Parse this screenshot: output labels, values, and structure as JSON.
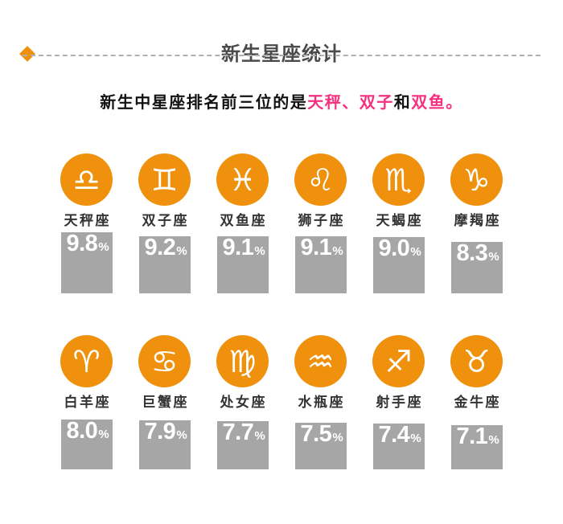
{
  "colors": {
    "accent": "#ef910d",
    "pink": "#f5317f",
    "bar_gray": "#a6a6a6",
    "title_gray": "#4a4a4a"
  },
  "header": {
    "title": "新生星座统计",
    "subtitle": {
      "seg1": "新生中星座排名前三位的是",
      "seg2": "天秤、双子",
      "seg3": "和",
      "seg4": "双鱼。"
    }
  },
  "ui": {
    "rows": [
      {
        "items": [
          {
            "label": "天秤座",
            "icon": "♎",
            "pct": "9.8",
            "unit": "%",
            "value": 9.8
          },
          {
            "label": "双子座",
            "icon": "♊",
            "pct": "9.2",
            "unit": "%",
            "value": 9.2
          },
          {
            "label": "双鱼座",
            "icon": "♓",
            "pct": "9.1",
            "unit": "%",
            "value": 9.1
          },
          {
            "label": "狮子座",
            "icon": "♌",
            "pct": "9.1",
            "unit": "%",
            "value": 9.1
          },
          {
            "label": "天蝎座",
            "icon": "♏",
            "pct": "9.0",
            "unit": "%",
            "value": 9.0
          },
          {
            "label": "摩羯座",
            "icon": "♑",
            "pct": "8.3",
            "unit": "%",
            "value": 8.3
          }
        ]
      },
      {
        "items": [
          {
            "label": "白羊座",
            "icon": "♈",
            "pct": "8.0",
            "unit": "%",
            "value": 8.0
          },
          {
            "label": "巨蟹座",
            "icon": "♋",
            "pct": "7.9",
            "unit": "%",
            "value": 7.9
          },
          {
            "label": "处女座",
            "icon": "♍",
            "pct": "7.7",
            "unit": "%",
            "value": 7.7
          },
          {
            "label": "水瓶座",
            "icon": "♒",
            "pct": "7.5",
            "unit": "%",
            "value": 7.5
          },
          {
            "label": "射手座",
            "icon": "♐",
            "pct": "7.4",
            "unit": "%",
            "value": 7.4
          },
          {
            "label": "金牛座",
            "icon": "♉",
            "pct": "7.1",
            "unit": "%",
            "value": 7.1
          }
        ]
      }
    ]
  },
  "chart_data": {
    "type": "bar",
    "title": "新生星座统计",
    "subtitle": "新生中星座排名前三位的是天秤、双子和双鱼。",
    "highlighted_top_three": [
      "天秤",
      "双子",
      "双鱼"
    ],
    "categories": [
      "天秤座",
      "双子座",
      "双鱼座",
      "狮子座",
      "天蝎座",
      "摩羯座",
      "白羊座",
      "巨蟹座",
      "处女座",
      "水瓶座",
      "射手座",
      "金牛座"
    ],
    "values": [
      9.8,
      9.2,
      9.1,
      9.1,
      9.0,
      8.3,
      8.0,
      7.9,
      7.7,
      7.5,
      7.4,
      7.1
    ],
    "unit": "%",
    "layout": "two rows of six pictogram columns, bar height proportional to value, labels above bars, grid off, no axes"
  }
}
